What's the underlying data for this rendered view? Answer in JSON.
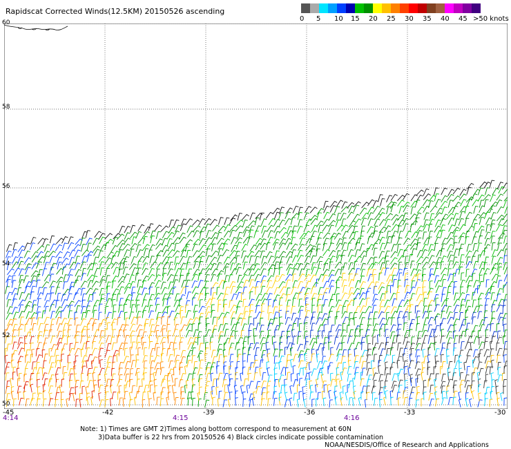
{
  "title": "Rapidscat Corrected Winds(12.5KM) 20150526 ascending",
  "speed_scale": {
    "colors": [
      "#555555",
      "#aaaaaa",
      "#00e5ff",
      "#00a0ff",
      "#0040ff",
      "#0000b0",
      "#00c000",
      "#009000",
      "#ffff00",
      "#ffc000",
      "#ff8000",
      "#ff4000",
      "#ff0000",
      "#c00000",
      "#804020",
      "#a06040",
      "#ff00ff",
      "#c000c0",
      "#8000a0",
      "#400080"
    ],
    "labels": [
      "0",
      "5",
      "10",
      "15",
      "20",
      "25",
      "30",
      "35",
      "40",
      "45",
      ">50 knots"
    ]
  },
  "latitudes": [
    "60",
    "58",
    "56",
    "54",
    "52",
    "50"
  ],
  "longitudes": [
    "-45",
    "-42",
    "-39",
    "-36",
    "-33",
    "-30"
  ],
  "times": [
    "4:14",
    "4:15",
    "4:16"
  ],
  "note_line1": "Note: 1) Times are GMT 2)Times along bottom correspond to measurement at 60N",
  "note_line2": "3)Data buffer is 22 hrs from 20150526 4) Black circles indicate possible contamination",
  "credit": "NOAA/NESDIS/Office of Research and Applications"
}
